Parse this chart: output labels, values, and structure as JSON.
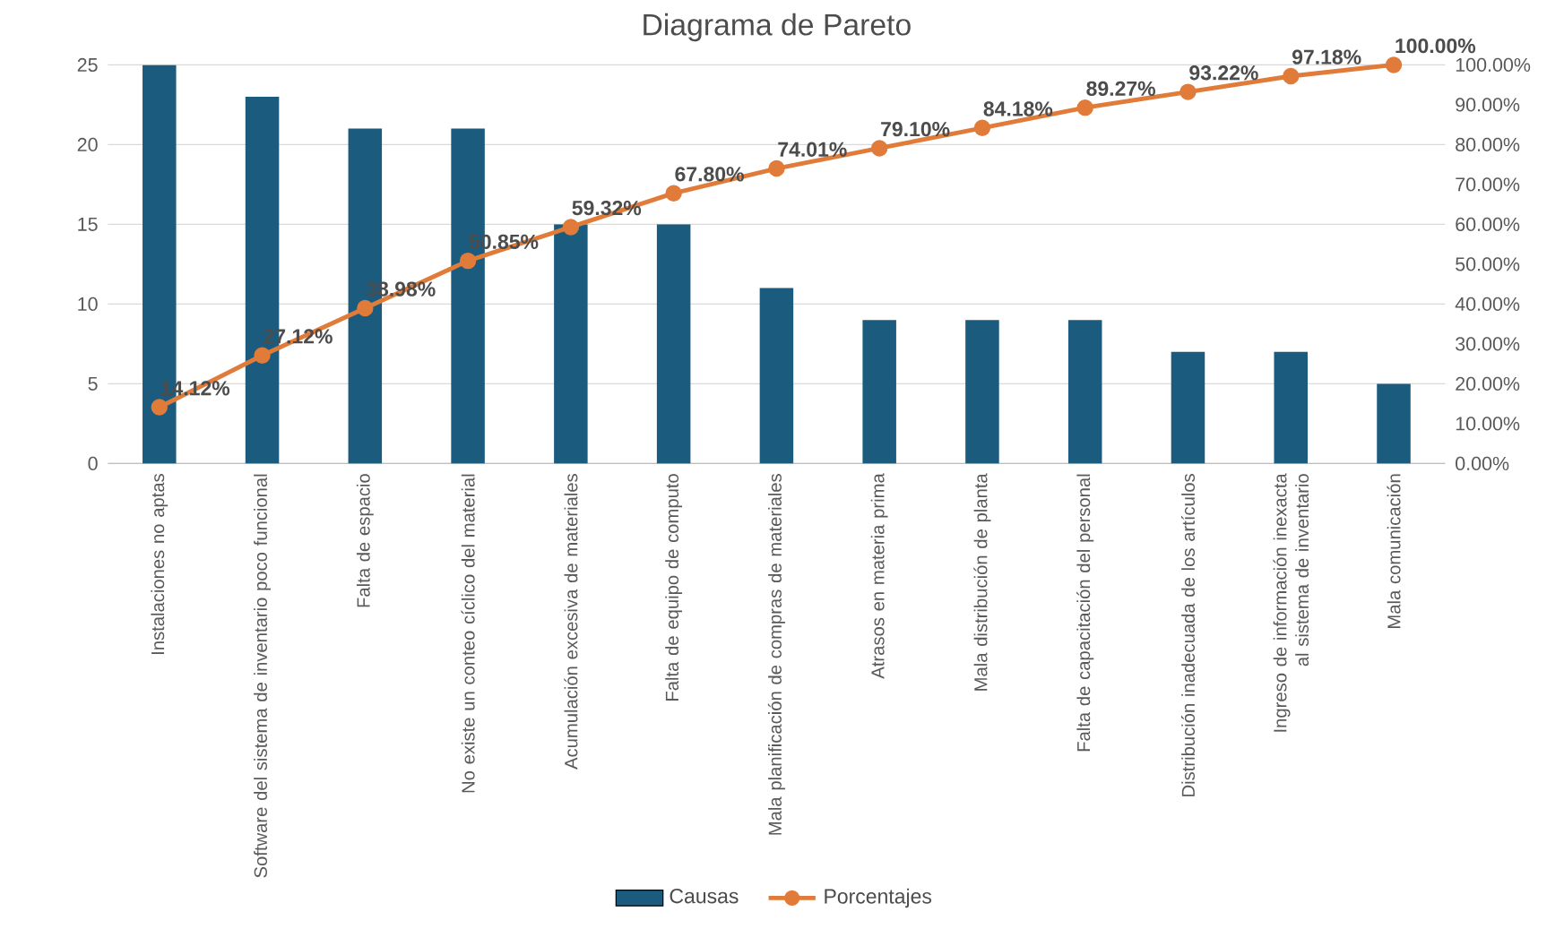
{
  "chart_data": {
    "type": "bar",
    "title": "Diagrama de Pareto",
    "categories": [
      "Instalaciones no aptas",
      "Software del sistema de inventario poco funcional",
      "Falta de espacio",
      "No existe un conteo cíclico del material",
      "Acumulación excesiva de materiales",
      "Falta de equipo de computo",
      "Mala planificación de compras de materiales",
      "Atrasos en materia prima",
      "Mala distribución de planta",
      "Falta de capacitación del personal",
      "Distribución inadecuada de los artículos",
      "Ingreso de información inexacta al sistema de inventario",
      "Mala comunicación"
    ],
    "series": [
      {
        "name": "Causas",
        "color": "#1b5b7e",
        "values": [
          25,
          23,
          21,
          21,
          15,
          15,
          11,
          9,
          9,
          9,
          7,
          7,
          5
        ]
      },
      {
        "name": "Porcentajes",
        "type": "line",
        "axis": "y2",
        "color": "#e07b39",
        "values": [
          14.12,
          27.12,
          38.98,
          50.85,
          59.32,
          67.8,
          74.01,
          79.1,
          84.18,
          89.27,
          93.22,
          97.18,
          100.0
        ],
        "value_labels": [
          "14.12%",
          "27.12%",
          "38.98%",
          "50.85%",
          "59.32%",
          "67.80%",
          "74.01%",
          "79.10%",
          "84.18%",
          "89.27%",
          "93.22%",
          "97.18%",
          "100.00%"
        ]
      }
    ],
    "ylim": [
      0,
      25
    ],
    "yticks": [
      0,
      5,
      10,
      15,
      20,
      25
    ],
    "y2lim": [
      0,
      100
    ],
    "y2ticks": [
      {
        "value": 0,
        "label": "0.00%"
      },
      {
        "value": 10,
        "label": "10.00%"
      },
      {
        "value": 20,
        "label": "20.00%"
      },
      {
        "value": 30,
        "label": "30.00%"
      },
      {
        "value": 40,
        "label": "40.00%"
      },
      {
        "value": 50,
        "label": "50.00%"
      },
      {
        "value": 60,
        "label": "60.00%"
      },
      {
        "value": 70,
        "label": "70.00%"
      },
      {
        "value": 80,
        "label": "80.00%"
      },
      {
        "value": 90,
        "label": "90.00%"
      },
      {
        "value": 100,
        "label": "100.00%"
      }
    ],
    "grid": "y",
    "legend": "bottom",
    "marker": "circle",
    "line_style": "solid"
  }
}
